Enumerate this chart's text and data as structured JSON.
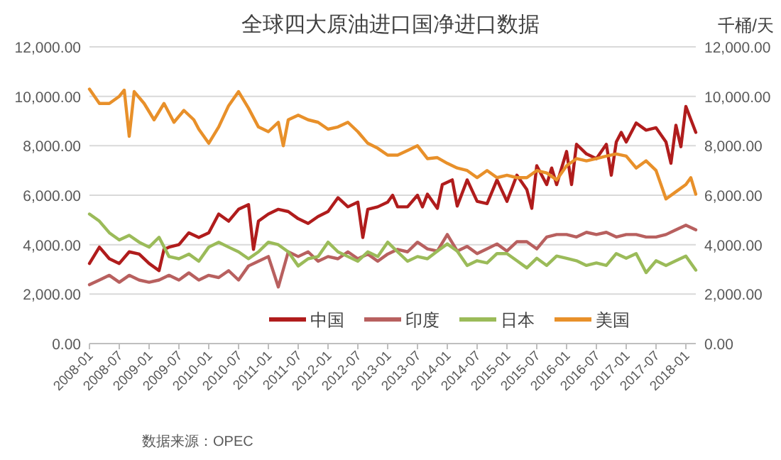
{
  "chart_data": {
    "type": "line",
    "title": "全球四大原油进口国净进口数据",
    "y2label": "千桶/天",
    "annotations": [
      "数据来源：OPEC"
    ],
    "xlim": [
      "2008-01",
      "2018-03"
    ],
    "xticks": [
      "2008-01",
      "2008-07",
      "2009-01",
      "2009-07",
      "2010-01",
      "2010-07",
      "2011-01",
      "2011-07",
      "2012-01",
      "2012-07",
      "2013-01",
      "2013-07",
      "2014-01",
      "2014-07",
      "2015-01",
      "2015-07",
      "2016-01",
      "2016-07",
      "2017-01",
      "2017-07",
      "2018-01"
    ],
    "ylim": [
      0,
      12000
    ],
    "yticks": [
      {
        "value": 0,
        "label": "0.00"
      },
      {
        "value": 2000,
        "label": "2,000.00"
      },
      {
        "value": 4000,
        "label": "4,000.00"
      },
      {
        "value": 6000,
        "label": "6,000.00"
      },
      {
        "value": 8000,
        "label": "8,000.00"
      },
      {
        "value": 10000,
        "label": "10,000.00"
      },
      {
        "value": 12000,
        "label": "12,000.00"
      }
    ],
    "y2lim": [
      0,
      12000
    ],
    "y2ticks": [
      {
        "value": 0,
        "label": "0.00"
      },
      {
        "value": 2000,
        "label": "2,000.00"
      },
      {
        "value": 4000,
        "label": "4,000.00"
      },
      {
        "value": 6000,
        "label": "6,000.00"
      },
      {
        "value": 8000,
        "label": "8,000.00"
      },
      {
        "value": 10000,
        "label": "10,000.00"
      },
      {
        "value": 12000,
        "label": "12,000.00"
      }
    ],
    "grid": "y",
    "legend": "bottom",
    "x": [
      "2008-01",
      "2008-03",
      "2008-05",
      "2008-07",
      "2008-09",
      "2008-11",
      "2009-01",
      "2009-03",
      "2009-05",
      "2009-07",
      "2009-09",
      "2009-11",
      "2010-01",
      "2010-03",
      "2010-05",
      "2010-07",
      "2010-09",
      "2010-11",
      "2011-01",
      "2011-03",
      "2011-05",
      "2011-07",
      "2011-09",
      "2011-11",
      "2012-01",
      "2012-03",
      "2012-05",
      "2012-07",
      "2012-09",
      "2012-11",
      "2013-01",
      "2013-03",
      "2013-05",
      "2013-07",
      "2013-09",
      "2013-11",
      "2014-01",
      "2014-03",
      "2014-05",
      "2014-07",
      "2014-09",
      "2014-11",
      "2015-01",
      "2015-03",
      "2015-05",
      "2015-07",
      "2015-09",
      "2015-11",
      "2016-01",
      "2016-03",
      "2016-05",
      "2016-07",
      "2016-09",
      "2016-11",
      "2017-01",
      "2017-03",
      "2017-05",
      "2017-07",
      "2017-09",
      "2017-11",
      "2018-01",
      "2018-03"
    ],
    "series": [
      {
        "name": "中国",
        "color": "#b01c1c",
        "x": [
          "2008-01",
          "2008-03",
          "2008-05",
          "2008-07",
          "2008-09",
          "2008-11",
          "2009-01",
          "2009-03",
          "2009-04",
          "2009-05",
          "2009-07",
          "2009-09",
          "2009-11",
          "2010-01",
          "2010-03",
          "2010-05",
          "2010-07",
          "2010-09",
          "2010-10",
          "2010-11",
          "2011-01",
          "2011-03",
          "2011-05",
          "2011-07",
          "2011-09",
          "2011-11",
          "2012-01",
          "2012-03",
          "2012-05",
          "2012-07",
          "2012-08",
          "2012-09",
          "2012-11",
          "2013-01",
          "2013-02",
          "2013-03",
          "2013-05",
          "2013-07",
          "2013-08",
          "2013-09",
          "2013-11",
          "2013-12",
          "2014-02",
          "2014-03",
          "2014-05",
          "2014-07",
          "2014-09",
          "2014-11",
          "2015-01",
          "2015-03",
          "2015-05",
          "2015-06",
          "2015-07",
          "2015-09",
          "2015-10",
          "2015-11",
          "2016-01",
          "2016-02",
          "2016-03",
          "2016-05",
          "2016-07",
          "2016-09",
          "2016-10",
          "2016-11",
          "2016-12",
          "2017-01",
          "2017-03",
          "2017-05",
          "2017-07",
          "2017-09",
          "2017-10",
          "2017-11",
          "2017-12",
          "2018-01",
          "2018-03"
        ],
        "values": [
          3240,
          3900,
          3430,
          3240,
          3710,
          3620,
          3240,
          2950,
          3810,
          3900,
          4000,
          4480,
          4290,
          4480,
          5240,
          4950,
          5430,
          5620,
          3810,
          4950,
          5240,
          5430,
          5340,
          5050,
          4860,
          5140,
          5340,
          5900,
          5530,
          5720,
          4290,
          5430,
          5530,
          5720,
          6000,
          5530,
          5530,
          6000,
          5530,
          6040,
          5470,
          6430,
          6620,
          5560,
          6620,
          5750,
          5660,
          6620,
          5750,
          6810,
          6230,
          5470,
          7190,
          6430,
          7100,
          6430,
          7770,
          6430,
          8060,
          7670,
          7480,
          8060,
          6810,
          8150,
          8540,
          8150,
          8920,
          8630,
          8730,
          8150,
          7290,
          8830,
          7960,
          9590,
          8540
        ]
      },
      {
        "name": "印度",
        "color": "#b8605f",
        "values": [
          2380,
          2570,
          2760,
          2480,
          2760,
          2570,
          2480,
          2570,
          2760,
          2570,
          2860,
          2570,
          2760,
          2670,
          2950,
          2570,
          3140,
          3330,
          3520,
          2290,
          3710,
          3520,
          3710,
          3330,
          3520,
          3430,
          3710,
          3430,
          3620,
          3330,
          3620,
          3810,
          3710,
          4100,
          3830,
          3740,
          4410,
          3740,
          3930,
          3640,
          3830,
          4030,
          3740,
          4120,
          4120,
          3830,
          4310,
          4410,
          4410,
          4310,
          4500,
          4410,
          4500,
          4310,
          4410,
          4410,
          4310,
          4310,
          4410,
          4600,
          4790,
          4600
        ]
      },
      {
        "name": "日本",
        "color": "#9bbb59",
        "values": [
          5240,
          4950,
          4480,
          4190,
          4380,
          4100,
          3900,
          4300,
          3520,
          3430,
          3620,
          3330,
          3900,
          4100,
          3900,
          3710,
          3430,
          3710,
          4100,
          4000,
          3710,
          3140,
          3430,
          3520,
          4100,
          3710,
          3520,
          3330,
          3710,
          3520,
          4100,
          3710,
          3330,
          3520,
          3430,
          3740,
          4030,
          3740,
          3160,
          3350,
          3260,
          3640,
          3640,
          3350,
          3060,
          3450,
          3160,
          3540,
          3450,
          3350,
          3160,
          3260,
          3160,
          3640,
          3450,
          3640,
          2870,
          3350,
          3160,
          3350,
          3540,
          2970
        ]
      },
      {
        "name": "美国",
        "color": "#e8902a",
        "x": [
          "2008-01",
          "2008-03",
          "2008-05",
          "2008-07",
          "2008-08",
          "2008-09",
          "2008-10",
          "2008-12",
          "2009-02",
          "2009-04",
          "2009-06",
          "2009-08",
          "2009-10",
          "2009-11",
          "2010-01",
          "2010-03",
          "2010-05",
          "2010-07",
          "2010-09",
          "2010-11",
          "2011-01",
          "2011-03",
          "2011-04",
          "2011-05",
          "2011-07",
          "2011-09",
          "2011-11",
          "2012-01",
          "2012-03",
          "2012-05",
          "2012-07",
          "2012-09",
          "2012-11",
          "2013-01",
          "2013-03",
          "2013-05",
          "2013-07",
          "2013-09",
          "2013-11",
          "2014-01",
          "2014-03",
          "2014-05",
          "2014-07",
          "2014-09",
          "2014-11",
          "2015-01",
          "2015-03",
          "2015-05",
          "2015-07",
          "2015-09",
          "2015-11",
          "2016-01",
          "2016-03",
          "2016-05",
          "2016-07",
          "2016-09",
          "2016-11",
          "2017-01",
          "2017-03",
          "2017-05",
          "2017-07",
          "2017-09",
          "2017-11",
          "2018-01",
          "2018-02",
          "2018-03"
        ],
        "values": [
          10290,
          9710,
          9710,
          10000,
          10250,
          8380,
          10190,
          9710,
          9050,
          9710,
          8950,
          9430,
          9050,
          8670,
          8100,
          8760,
          9620,
          10190,
          9520,
          8760,
          8570,
          8950,
          8000,
          9050,
          9240,
          9050,
          8950,
          8670,
          8760,
          8950,
          8570,
          8100,
          7900,
          7620,
          7620,
          7810,
          8000,
          7480,
          7520,
          7290,
          7100,
          7000,
          6710,
          7000,
          6710,
          6810,
          6710,
          6710,
          7000,
          6900,
          6620,
          7190,
          7480,
          7390,
          7480,
          7580,
          7670,
          7580,
          7100,
          7390,
          7000,
          5850,
          6140,
          6430,
          6710,
          6040
        ]
      }
    ]
  }
}
